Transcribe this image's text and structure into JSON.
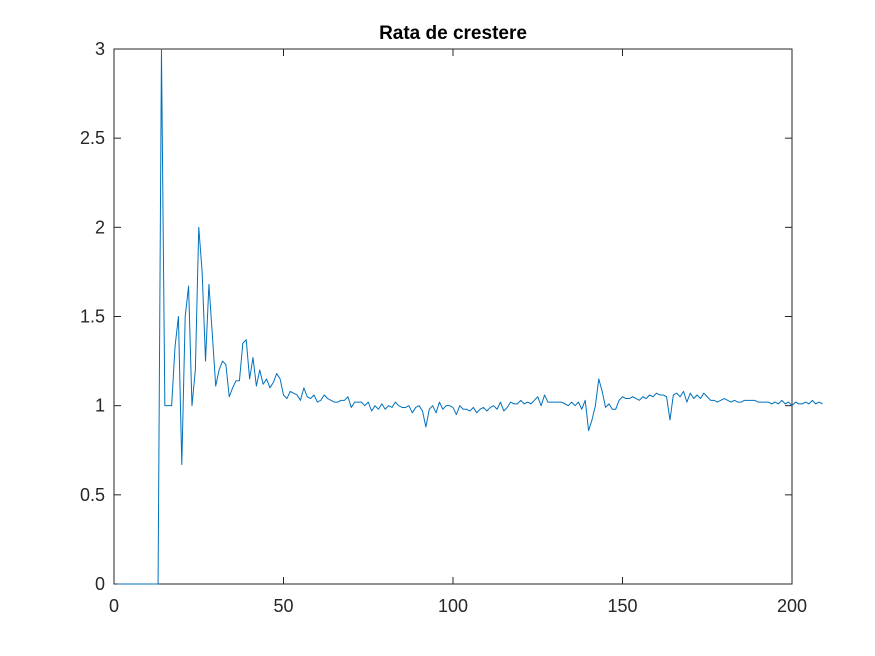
{
  "chart_data": {
    "type": "line",
    "title": "Rata de crestere",
    "xlabel": "",
    "ylabel": "",
    "xlim": [
      0,
      200
    ],
    "ylim": [
      0,
      3
    ],
    "xticks": [
      0,
      50,
      100,
      150,
      200
    ],
    "yticks": [
      0,
      0.5,
      1,
      1.5,
      2,
      2.5,
      3
    ],
    "xtick_labels": [
      "0",
      "50",
      "100",
      "150",
      "200"
    ],
    "ytick_labels": [
      "0",
      "0.5",
      "1",
      "1.5",
      "2",
      "2.5",
      "3"
    ],
    "grid": false,
    "legend": "none",
    "series_color": "#0072BD",
    "series": [
      {
        "values": [
          0,
          0,
          0,
          0,
          0,
          0,
          0,
          0,
          0,
          0,
          0,
          0,
          0,
          3,
          1,
          1,
          1,
          1.33,
          1.5,
          0.67,
          1.5,
          1.67,
          1,
          1.2,
          2,
          1.75,
          1.25,
          1.68,
          1.4,
          1.11,
          1.2,
          1.25,
          1.23,
          1.05,
          1.1,
          1.14,
          1.14,
          1.35,
          1.37,
          1.15,
          1.27,
          1.11,
          1.2,
          1.12,
          1.15,
          1.1,
          1.13,
          1.18,
          1.15,
          1.06,
          1.04,
          1.08,
          1.07,
          1.06,
          1.03,
          1.1,
          1.05,
          1.04,
          1.06,
          1.02,
          1.03,
          1.06,
          1.04,
          1.03,
          1.02,
          1.02,
          1.03,
          1.03,
          1.05,
          0.99,
          1.02,
          1.02,
          1.02,
          1,
          1.02,
          0.97,
          1,
          0.98,
          1.01,
          0.98,
          1,
          0.99,
          1.02,
          1,
          0.99,
          0.99,
          1,
          0.96,
          0.99,
          1,
          0.97,
          0.88,
          0.98,
          1,
          0.96,
          1.02,
          0.98,
          1,
          1,
          0.99,
          0.95,
          1,
          0.98,
          0.98,
          0.97,
          0.99,
          0.96,
          0.98,
          0.99,
          0.97,
          0.99,
          1,
          0.98,
          1.02,
          0.97,
          0.99,
          1.02,
          1.01,
          1.01,
          1.03,
          1.01,
          1.02,
          1.01,
          1.03,
          1.05,
          1,
          1.06,
          1.02,
          1.02,
          1.02,
          1.02,
          1.02,
          1.01,
          1,
          1.02,
          1,
          1.02,
          0.98,
          1.03,
          0.86,
          0.92,
          1,
          1.15,
          1.08,
          0.99,
          1.01,
          0.98,
          0.98,
          1.03,
          1.05,
          1.04,
          1.04,
          1.05,
          1.04,
          1.03,
          1.05,
          1.04,
          1.06,
          1.05,
          1.07,
          1.06,
          1.06,
          1.05,
          0.92,
          1.06,
          1.07,
          1.05,
          1.08,
          1.02,
          1.07,
          1.04,
          1.06,
          1.04,
          1.07,
          1.05,
          1.03,
          1.03,
          1.02,
          1.03,
          1.04,
          1.03,
          1.02,
          1.03,
          1.02,
          1.02,
          1.03,
          1.03,
          1.03,
          1.03,
          1.02,
          1.02,
          1.02,
          1.02,
          1.01,
          1.02,
          1.01,
          1.03,
          1.01,
          1.02,
          1,
          1.02,
          1.01,
          1.01,
          1.02,
          1.01,
          1.03,
          1.01,
          1.02,
          1.01
        ]
      }
    ]
  }
}
